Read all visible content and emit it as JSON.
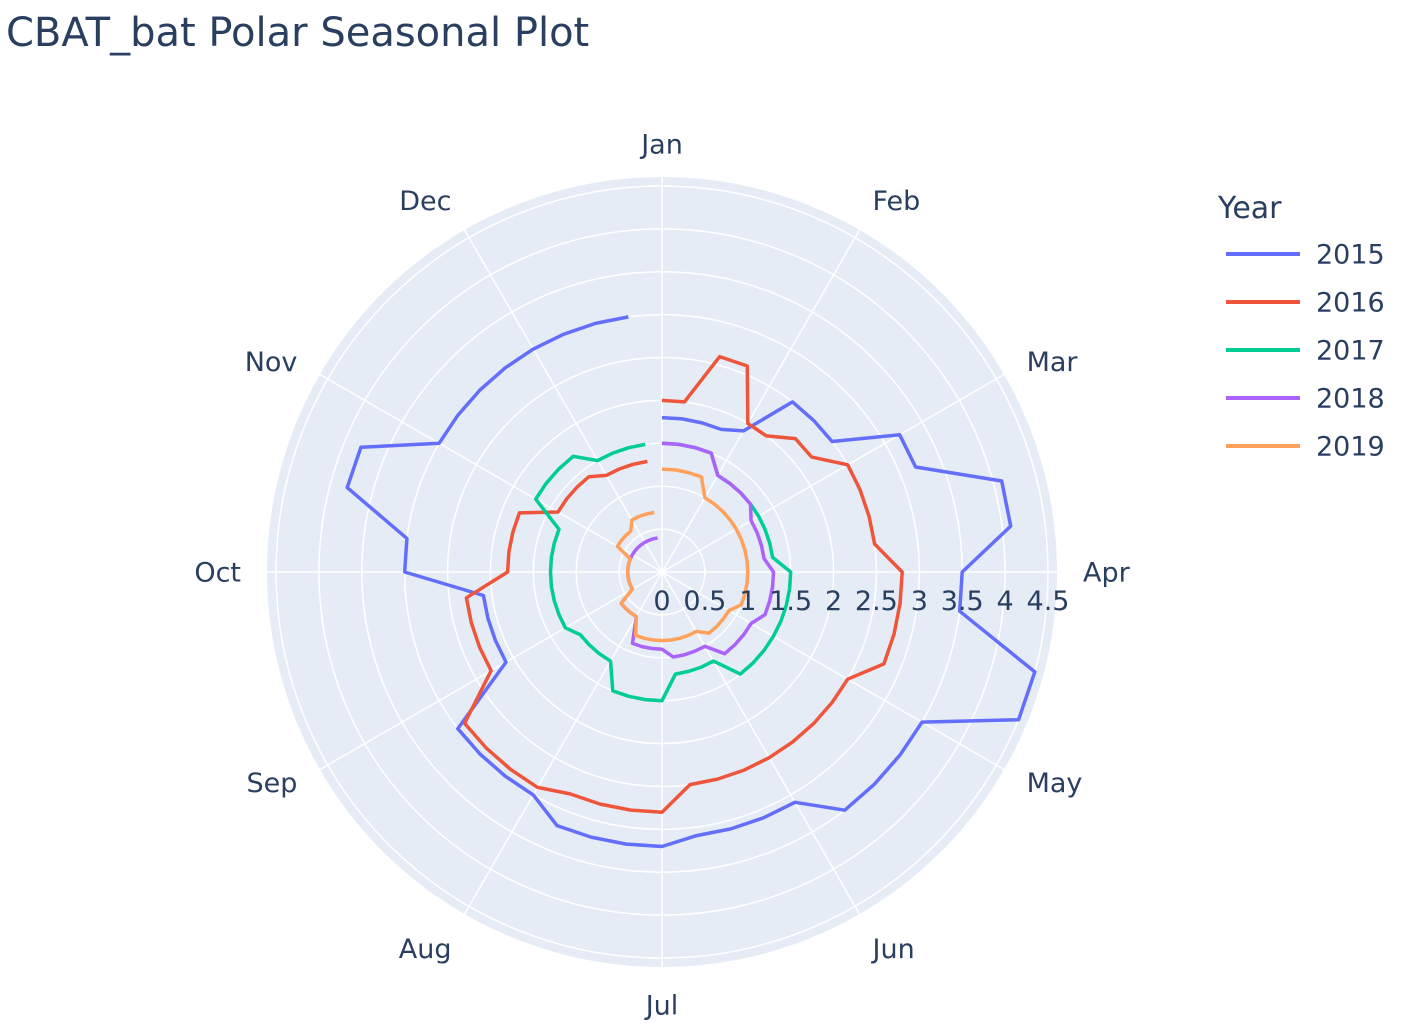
{
  "chart_data": {
    "type": "line",
    "subtype": "polar",
    "title": "CBAT_bat Polar Seasonal Plot",
    "angular_axis": {
      "categories": [
        "Jan",
        "Feb",
        "Mar",
        "Apr",
        "May",
        "Jun",
        "Jul",
        "Aug",
        "Sep",
        "Oct",
        "Nov",
        "Dec"
      ],
      "direction": "clockwise",
      "rotation": "Jan at top"
    },
    "radial_axis": {
      "range": [
        0,
        4.5
      ],
      "tick_labels": [
        "0",
        "0.5",
        "1",
        "1.5",
        "2",
        "2.5",
        "3",
        "3.5",
        "4",
        "4.5"
      ],
      "tick_values": [
        0,
        0.5,
        1,
        1.5,
        2,
        2.5,
        3,
        3.5,
        4,
        4.5
      ]
    },
    "legend": {
      "title": "Year",
      "position": "right"
    },
    "grid": true,
    "steps_per_month": 4,
    "series": [
      {
        "name": "2015",
        "color": "#636efa",
        "values": [
          [
            1.8,
            1.8,
            1.8,
            1.8
          ],
          [
            1.9,
            2.5,
            2.5,
            2.5
          ],
          [
            3.2,
            3.2,
            4.1,
            4.1
          ],
          [
            3.5,
            3.5,
            4.5,
            4.5
          ],
          [
            3.5,
            3.5,
            3.5,
            3.5
          ],
          [
            3.1,
            3.1,
            3.1,
            3.1
          ],
          [
            3.2,
            3.2,
            3.2,
            3.2
          ],
          [
            3.0,
            3.0,
            3.0,
            3.0
          ],
          [
            2.1,
            2.1,
            2.1,
            2.1
          ],
          [
            3.0,
            3.0,
            3.8,
            3.8
          ],
          [
            3.0,
            3.0,
            3.0,
            3.0
          ],
          [
            3.0,
            3.0,
            3.0,
            3.0
          ]
        ]
      },
      {
        "name": "2016",
        "color": "#ef553b",
        "values": [
          [
            2.0,
            2.0,
            2.6,
            2.6
          ],
          [
            2.0,
            2.0,
            2.2,
            2.2
          ],
          [
            2.5,
            2.5,
            2.5,
            2.5
          ],
          [
            2.8,
            2.8,
            2.8,
            2.8
          ],
          [
            2.5,
            2.5,
            2.5,
            2.5
          ],
          [
            2.5,
            2.5,
            2.5,
            2.5
          ],
          [
            2.8,
            2.8,
            2.8,
            2.8
          ],
          [
            2.9,
            2.9,
            2.9,
            2.9
          ],
          [
            2.3,
            2.3,
            2.3,
            2.3
          ],
          [
            1.8,
            1.8,
            1.8,
            1.8
          ],
          [
            1.4,
            1.4,
            1.4,
            1.4
          ],
          [
            1.3,
            1.3,
            1.3,
            1.3
          ]
        ]
      },
      {
        "name": "2017",
        "color": "#00cc96",
        "values": [
          [
            1.5,
            1.5,
            1.5,
            1.5
          ],
          [
            1.3,
            1.3,
            1.3,
            1.3
          ],
          [
            1.3,
            1.3,
            1.3,
            1.3
          ],
          [
            1.5,
            1.5,
            1.5,
            1.5
          ],
          [
            1.5,
            1.5,
            1.5,
            1.5
          ],
          [
            1.2,
            1.2,
            1.2,
            1.2
          ],
          [
            1.5,
            1.5,
            1.5,
            1.5
          ],
          [
            1.2,
            1.2,
            1.2,
            1.2
          ],
          [
            1.3,
            1.3,
            1.3,
            1.3
          ],
          [
            1.3,
            1.3,
            1.3,
            1.3
          ],
          [
            1.7,
            1.7,
            1.7,
            1.7
          ],
          [
            1.5,
            1.5,
            1.5,
            1.5
          ]
        ]
      },
      {
        "name": "2018",
        "color": "#ab63fa",
        "values": [
          [
            1.5,
            1.5,
            1.5,
            1.5
          ],
          [
            1.3,
            1.3,
            1.3,
            1.3
          ],
          [
            1.2,
            1.2,
            1.2,
            1.2
          ],
          [
            1.3,
            1.3,
            1.3,
            1.3
          ],
          [
            1.2,
            1.2,
            1.2,
            1.2
          ],
          [
            1.0,
            1.0,
            1.0,
            1.0
          ],
          [
            0.9,
            0.9,
            0.9,
            0.9
          ],
          [
            0.6,
            0.6,
            0.6,
            0.6
          ],
          [
            0.4,
            0.4,
            0.4,
            0.4
          ],
          [
            0.4,
            0.4,
            0.4,
            0.4
          ],
          [
            0.4,
            0.4,
            0.4,
            0.4
          ],
          [
            0.4,
            0.4,
            0.4,
            0.4
          ]
        ]
      },
      {
        "name": "2019",
        "color": "#ffa15a",
        "values": [
          [
            1.2,
            1.2,
            1.2,
            1.2
          ],
          [
            1.0,
            1.0,
            1.0,
            1.0
          ],
          [
            1.0,
            1.0,
            1.0,
            1.0
          ],
          [
            1.0,
            1.0,
            1.0,
            1.0
          ],
          [
            0.9,
            0.9,
            0.9,
            0.9
          ],
          [
            0.8,
            0.8,
            0.8,
            0.8
          ],
          [
            0.8,
            0.8,
            0.8,
            0.8
          ],
          [
            0.6,
            0.6,
            0.6,
            0.6
          ],
          [
            0.4,
            0.4,
            0.4,
            0.4
          ],
          [
            0.4,
            0.4,
            0.4,
            0.4
          ],
          [
            0.6,
            0.6,
            0.6,
            0.6
          ],
          [
            0.7,
            0.7,
            0.7,
            0.7
          ]
        ]
      }
    ]
  }
}
